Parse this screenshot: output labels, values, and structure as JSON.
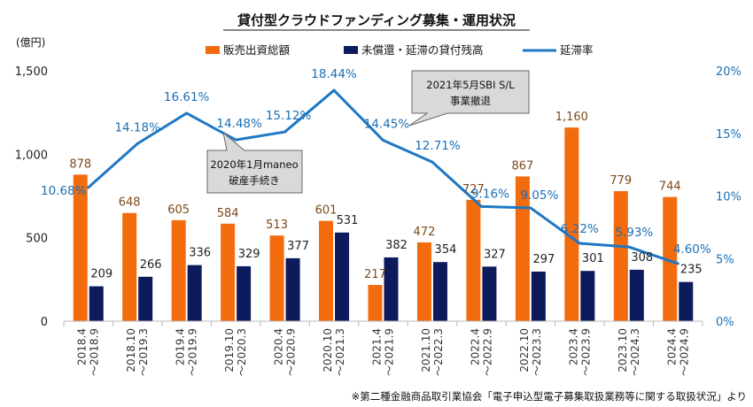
{
  "chart_data": {
    "type": "bar",
    "title": "貸付型クラウドファンディング募集・運用状況",
    "y_unit": "(億円)",
    "categories": [
      "2018.4 ～2018.9",
      "2018.10 ～2019.3",
      "2019.4 ～2019.9",
      "2019.10 ～2020.3",
      "2020.4 ～2020.9",
      "2020.10 ～2021.3",
      "2021.4 ～2021.9",
      "2021.10 ～2022.3",
      "2022.4 ～2022.9",
      "2022.10 ～2023.3",
      "2023.4 ～2023.9",
      "2023.10 ～2024.3",
      "2024.4 ～2024.9"
    ],
    "series": [
      {
        "name": "販売出資総額",
        "type": "bar",
        "axis": "left",
        "color": "#f26c0d",
        "values": [
          878,
          648,
          605,
          584,
          513,
          601,
          217,
          472,
          727,
          867,
          1160,
          779,
          744
        ],
        "labels": [
          "878",
          "648",
          "605",
          "584",
          "513",
          "601",
          "217",
          "472",
          "727",
          "867",
          "1,160",
          "779",
          "744"
        ]
      },
      {
        "name": "未償還・延滞の貸付残高",
        "type": "bar",
        "axis": "left",
        "color": "#0d1a5c",
        "values": [
          209,
          266,
          336,
          329,
          377,
          531,
          382,
          354,
          327,
          297,
          301,
          308,
          235
        ],
        "labels": [
          "209",
          "266",
          "336",
          "329",
          "377",
          "531",
          "382",
          "354",
          "327",
          "297",
          "301",
          "308",
          "235"
        ]
      },
      {
        "name": "延滞率",
        "type": "line",
        "axis": "right",
        "color": "#1f77c4",
        "values": [
          10.68,
          14.18,
          16.61,
          14.48,
          15.12,
          18.44,
          14.45,
          12.71,
          9.16,
          9.05,
          6.22,
          5.93,
          4.6
        ],
        "labels": [
          "10.68%",
          "14.18%",
          "16.61%",
          "14.48%",
          "15.12%",
          "18.44%",
          "14.45%",
          "12.71%",
          "9.16%",
          "9.05%",
          "6.22%",
          "5.93%",
          "4.60%"
        ]
      }
    ],
    "y_left": {
      "ylim": [
        0,
        1500
      ],
      "ticks": [
        0,
        500,
        1000,
        1500
      ],
      "tick_labels": [
        "0",
        "500",
        "1,000",
        "1,500"
      ]
    },
    "y_right": {
      "ylim": [
        0,
        20
      ],
      "ticks": [
        0,
        5,
        10,
        15,
        20
      ],
      "tick_labels": [
        "0%",
        "5%",
        "10%",
        "15%",
        "20%"
      ]
    },
    "grid": false,
    "legend_position": "top",
    "annotations": [
      {
        "lines": [
          "2020年1月maneo",
          "破産手続き"
        ],
        "category_index": 3
      },
      {
        "lines": [
          "2021年5月SBI S/L",
          "事業撤退"
        ],
        "category_index": 6
      }
    ]
  },
  "footnote": "※第二種金融商品取引業協会「電子申込型電子募集取扱業務等に関する取扱状況」より"
}
